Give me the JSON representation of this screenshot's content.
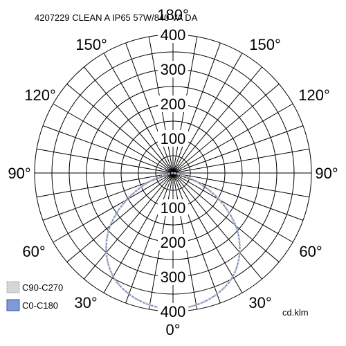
{
  "chart_data": {
    "type": "polar",
    "title": "4207229 CLEAN A IP65 57W/840 VA DA",
    "unit": "cd.klm",
    "radial_ticks": [
      "100",
      "200",
      "300",
      "400"
    ],
    "rmax": 400,
    "angle_labels": {
      "top": "180°",
      "upper_left": "150°",
      "upper_right": "150°",
      "mid_upper_left": "120°",
      "mid_upper_right": "120°",
      "left": "90°",
      "right": "90°",
      "mid_lower_left": "60°",
      "mid_lower_right": "60°",
      "lower_left": "30°",
      "lower_right": "30°",
      "bottom": "0°"
    },
    "legend": [
      "C90-C270",
      "C0-C180"
    ],
    "series": [
      {
        "name": "C90-C270",
        "color": "#bdbdbd",
        "gamma_deg": [
          0,
          10,
          20,
          30,
          40,
          50,
          60,
          70,
          80,
          90
        ],
        "values": [
          395,
          390,
          375,
          350,
          305,
          245,
          165,
          85,
          25,
          0
        ]
      },
      {
        "name": "C0-C180",
        "color": "#7a8fd0",
        "gamma_deg": [
          0,
          10,
          20,
          30,
          40,
          50,
          60,
          70,
          80,
          90
        ],
        "values": [
          395,
          390,
          375,
          350,
          305,
          245,
          165,
          85,
          25,
          0
        ]
      }
    ],
    "grid": true
  },
  "colors": {
    "grid": "#000000",
    "swatch_c90": "#d6d6d6",
    "swatch_c0": "#7f9ad6"
  }
}
